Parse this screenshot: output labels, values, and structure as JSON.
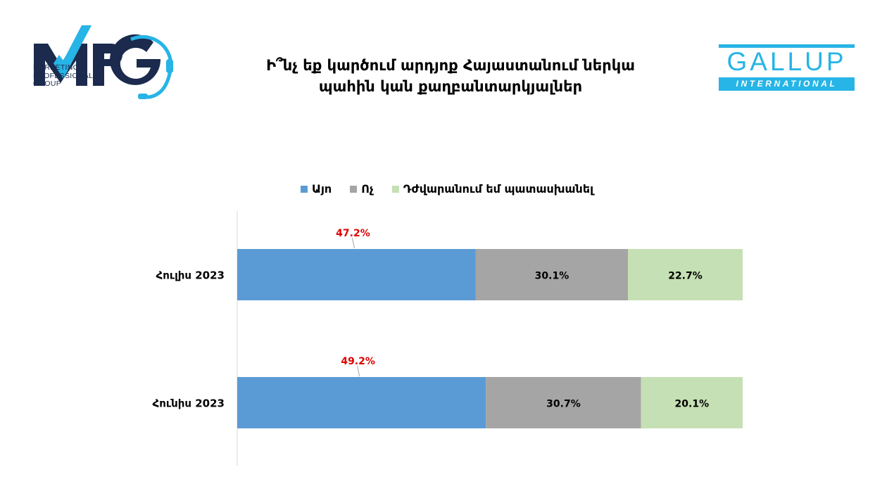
{
  "title": {
    "line1": "Ի՞նչ եք կարծում արդյոք Հայաստանում ներկա",
    "line2": "պահին կան քաղբանտարկյալներ"
  },
  "logos": {
    "mpg": {
      "letters": "MPG",
      "line1": "MARKETING",
      "line2": "PROFESSIONAL",
      "line3": "GROUP"
    },
    "gallup": {
      "word": "GALLUP",
      "sub": "INTERNATIONAL"
    }
  },
  "colors": {
    "yes": "#5b9bd5",
    "no": "#a5a5a5",
    "hard": "#c5e0b4",
    "yes_label": "#e00000",
    "mpg_navy": "#1b2a4d",
    "mpg_cyan": "#27b4e6",
    "gallup_blue": "#27b4e6"
  },
  "chart_data": {
    "type": "bar",
    "orientation": "horizontal",
    "stacked": true,
    "categories": [
      "Հուլիս 2023",
      "Հունիս 2023"
    ],
    "series": [
      {
        "name": "Այո",
        "values": [
          47.2,
          49.2
        ],
        "labels": [
          "47.2%",
          "49.2%"
        ]
      },
      {
        "name": "Ոչ",
        "values": [
          30.1,
          30.7
        ],
        "labels": [
          "30.1%",
          "30.7%"
        ]
      },
      {
        "name": "Դժվարանում եմ պատասխանել",
        "values": [
          22.7,
          20.1
        ],
        "labels": [
          "22.7%",
          "20.1%"
        ]
      }
    ],
    "xlim": [
      0,
      100
    ],
    "legend_position": "top",
    "grid": false
  }
}
